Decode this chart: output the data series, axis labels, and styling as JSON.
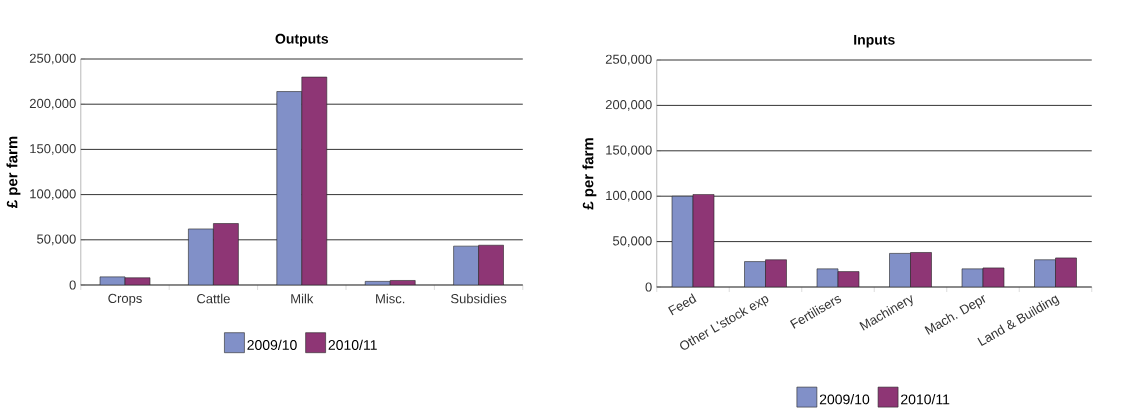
{
  "chart_data": [
    {
      "type": "bar",
      "title": "Outputs",
      "ylabel": "£ per farm",
      "categories": [
        "Crops",
        "Cattle",
        "Milk",
        "Misc.",
        "Subsidies"
      ],
      "series": [
        {
          "name": "2009/10",
          "color": "#8190c8",
          "values": [
            9000,
            62000,
            214000,
            4000,
            43000
          ]
        },
        {
          "name": "2010/11",
          "color": "#8e3675",
          "values": [
            8000,
            68000,
            230000,
            5000,
            44000
          ]
        }
      ],
      "ylim": [
        0,
        250000
      ],
      "yticks": [
        0,
        {
          "value": 50000,
          "label": "50,000"
        },
        {
          "value": 100000,
          "label": "100,000"
        },
        {
          "value": 150000,
          "label": "150,000"
        },
        {
          "value": 200000,
          "label": "200,000"
        },
        {
          "value": 250000,
          "label": "250,000"
        }
      ],
      "grid": "y",
      "legend": "bottom"
    },
    {
      "type": "bar",
      "title": "Inputs",
      "ylabel": "£ per farm",
      "categories": [
        "Feed",
        "Other L'stock exp",
        "Fertilisers",
        "Machinery",
        "Mach. Depr",
        "Land & Building"
      ],
      "series": [
        {
          "name": "2009/10",
          "color": "#8190c8",
          "values": [
            100000,
            28000,
            20000,
            37000,
            20000,
            30000
          ]
        },
        {
          "name": "2010/11",
          "color": "#8e3675",
          "values": [
            102000,
            30000,
            17000,
            38000,
            21000,
            32000
          ]
        }
      ],
      "ylim": [
        0,
        250000
      ],
      "yticks": [
        0,
        {
          "value": 50000,
          "label": "50,000"
        },
        {
          "value": 100000,
          "label": "100,000"
        },
        {
          "value": 150000,
          "label": "150,000"
        },
        {
          "value": 200000,
          "label": "200,000"
        },
        {
          "value": 250000,
          "label": "250,000"
        }
      ],
      "grid": "y",
      "legend": "bottom"
    }
  ]
}
